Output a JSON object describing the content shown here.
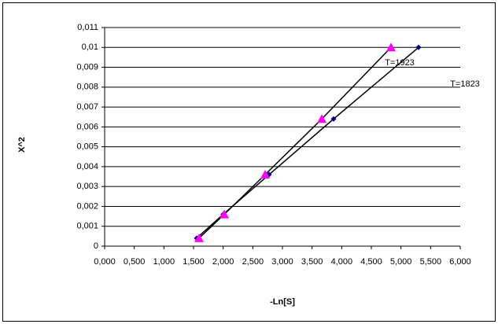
{
  "chart_data": {
    "type": "scatter",
    "x_label": "-Ln[S]",
    "y_label": "X^2",
    "series": [
      {
        "color": "#000080",
        "marker": "diamond",
        "line_color": "#000000",
        "x": [
          1.553,
          2.0,
          2.774,
          3.863,
          5.297
        ],
        "values": [
          0.0004,
          0.0016,
          0.0036,
          0.0064,
          0.01
        ]
      },
      {
        "color": "#ff00ff",
        "marker": "triangle",
        "line_color": "#000000",
        "x": [
          1.593,
          2.018,
          2.708,
          3.664,
          4.832
        ],
        "values": [
          0.0004,
          0.0016,
          0.0036,
          0.0064,
          0.01
        ]
      }
    ],
    "annotations": [
      "T=1923",
      "T=1823"
    ],
    "xlim": [
      0,
      6
    ],
    "ylim": [
      0,
      0.011
    ],
    "xticks": [
      {
        "value": 0,
        "label": "0,000"
      },
      {
        "value": 0.5,
        "label": "0,500"
      },
      {
        "value": 1,
        "label": "1,000"
      },
      {
        "value": 1.5,
        "label": "1,500"
      },
      {
        "value": 2,
        "label": "2,000"
      },
      {
        "value": 2.5,
        "label": "2,500"
      },
      {
        "value": 3,
        "label": "3,000"
      },
      {
        "value": 3.5,
        "label": "3,500"
      },
      {
        "value": 4,
        "label": "4,000"
      },
      {
        "value": 4.5,
        "label": "4,500"
      },
      {
        "value": 5,
        "label": "5,000"
      },
      {
        "value": 5.5,
        "label": "5,500"
      },
      {
        "value": 6,
        "label": "6,000"
      }
    ],
    "yticks": [
      0,
      {
        "value": 0.001,
        "label": "0,001"
      },
      {
        "value": 0.002,
        "label": "0,002"
      },
      {
        "value": 0.003,
        "label": "0,003"
      },
      {
        "value": 0.004,
        "label": "0,004"
      },
      {
        "value": 0.005,
        "label": "0,005"
      },
      {
        "value": 0.006,
        "label": "0,006"
      },
      {
        "value": 0.007,
        "label": "0,007"
      },
      {
        "value": 0.008,
        "label": "0,008"
      },
      {
        "value": 0.009,
        "label": "0,009"
      },
      {
        "value": 0.01,
        "label": "0,01"
      },
      {
        "value": 0.011,
        "label": "0,011"
      }
    ],
    "grid": true
  }
}
